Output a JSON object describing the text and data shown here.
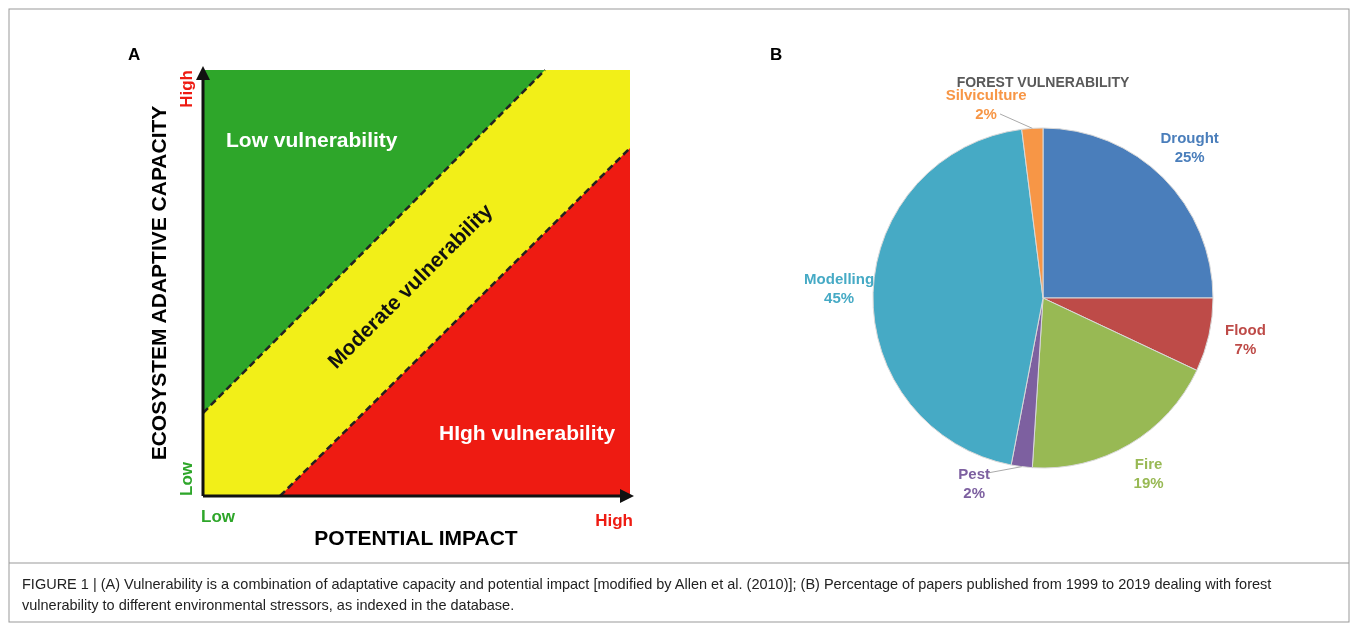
{
  "chart_data": [
    {
      "type": "other",
      "xlabel": "POTENTIAL IMPACT",
      "ylabel": "ECOSYSTEM ADAPTIVE CAPACITY",
      "annotations": [
        "A",
        "Low vulnerability",
        "Moderate vulnerability",
        "HIgh vulnerability",
        "Low",
        "High",
        "Low",
        "High"
      ]
    },
    {
      "type": "pie",
      "title": "FOREST VULNERABILITY",
      "categories": [
        "Drought",
        "Flood",
        "Fire",
        "Pest",
        "Modelling",
        "Silviculture"
      ],
      "values": [
        25,
        7,
        19,
        2,
        45,
        2
      ],
      "colors": [
        "#4a7ebb",
        "#be4b48",
        "#98b954",
        "#7d60a0",
        "#46aac5",
        "#f79646"
      ],
      "value_labels": [
        "25%",
        "7%",
        "19%",
        "2%",
        "45%",
        "2%"
      ],
      "annotations": [
        "B",
        "FIGURE 1 | (A) Vulnerability is a combination of adaptative capacity and potential impact [modified by Allen et al. (2010)]; (B) Percentage of papers published from 1999 to 2019 dealing with forest vulnerability to different environmental stressors, as indexed in the database."
      ]
    }
  ]
}
